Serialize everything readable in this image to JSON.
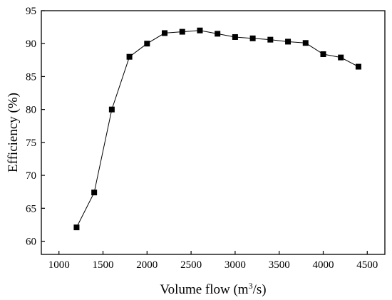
{
  "chart_data": {
    "type": "line",
    "xlabel": "Volume flow (m³/s)",
    "xlabel_main": "Volume flow (m",
    "xlabel_sup": "3",
    "xlabel_tail": "/s)",
    "ylabel": "Efficiency (%)",
    "xlim": [
      800,
      4700
    ],
    "ylim": [
      58,
      95
    ],
    "x_ticks": [
      1000,
      1500,
      2000,
      2500,
      3000,
      3500,
      4000,
      4500
    ],
    "y_ticks": [
      60,
      65,
      70,
      75,
      80,
      85,
      90,
      95
    ],
    "grid": false,
    "marker": "square",
    "line_color": "#000000",
    "series": [
      {
        "x": [
          1200,
          1400,
          1600,
          1800,
          2000,
          2200,
          2400,
          2600,
          2800,
          3000,
          3200,
          3400,
          3600,
          3800,
          4000,
          4200,
          4400
        ],
        "y": [
          62.1,
          67.4,
          80.0,
          88.0,
          90.0,
          91.6,
          91.8,
          92.0,
          91.5,
          91.0,
          90.8,
          90.6,
          90.3,
          90.1,
          88.4,
          87.9,
          86.5
        ]
      }
    ]
  }
}
